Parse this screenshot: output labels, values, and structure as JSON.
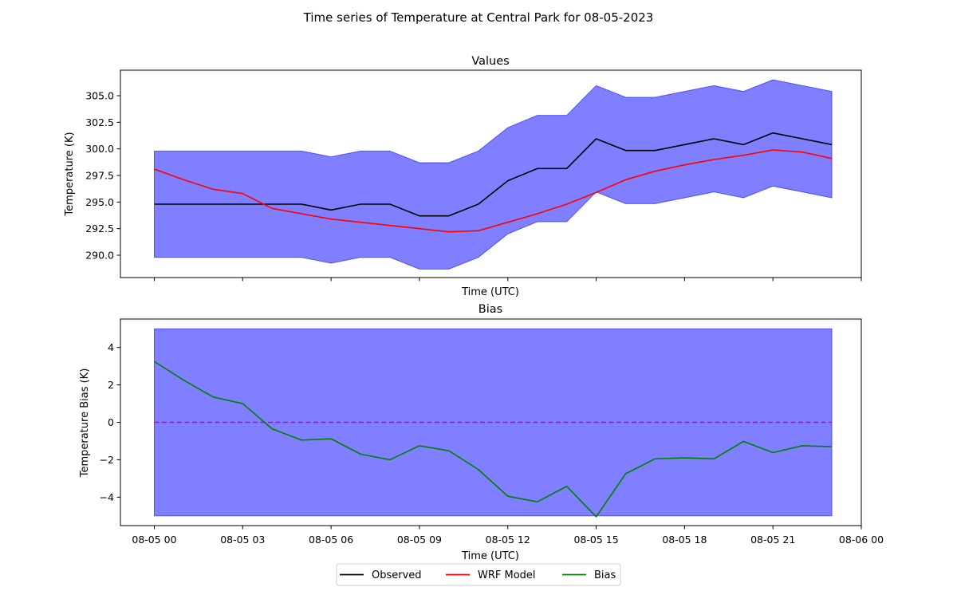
{
  "figure": {
    "title": "Time series of Temperature at Central Park for 08-05-2023"
  },
  "legend": {
    "placement": "bottom-center",
    "entries": [
      {
        "label": "Observed",
        "color": "#000000"
      },
      {
        "label": "WRF Model",
        "color": "#ff0000"
      },
      {
        "label": "Bias",
        "color": "#008000"
      }
    ]
  },
  "chart_data": [
    {
      "type": "line",
      "title": "Values",
      "xlabel": "Time (UTC)",
      "ylabel": "Temperature (K)",
      "x_hours": [
        0,
        1,
        2,
        3,
        4,
        5,
        6,
        7,
        8,
        9,
        10,
        11,
        12,
        13,
        14,
        15,
        16,
        17,
        18,
        19,
        20,
        21,
        22,
        23
      ],
      "xlim": [
        -1.15,
        24.0
      ],
      "ylim": [
        287.9,
        307.4
      ],
      "yticks": [
        290.0,
        292.5,
        295.0,
        297.5,
        300.0,
        302.5,
        305.0
      ],
      "ytick_labels": [
        "290.0",
        "292.5",
        "295.0",
        "297.5",
        "300.0",
        "302.5",
        "305.0"
      ],
      "xticks_hours": [
        0,
        3,
        6,
        9,
        12,
        15,
        18,
        21,
        24
      ],
      "show_xtick_labels": false,
      "band": {
        "color": "#0000ff",
        "alpha": 0.5,
        "upper": [
          299.8,
          299.8,
          299.8,
          299.8,
          299.8,
          299.8,
          299.25,
          299.8,
          299.8,
          298.7,
          298.7,
          299.8,
          302.0,
          303.15,
          303.15,
          305.95,
          304.85,
          304.85,
          305.4,
          305.95,
          305.4,
          306.5,
          305.95,
          305.4
        ],
        "lower": [
          289.8,
          289.8,
          289.8,
          289.8,
          289.8,
          289.8,
          289.25,
          289.8,
          289.8,
          288.7,
          288.7,
          289.8,
          292.0,
          293.15,
          293.15,
          295.95,
          294.85,
          294.85,
          295.4,
          295.95,
          295.4,
          296.5,
          295.95,
          295.4
        ]
      },
      "series": [
        {
          "name": "Observed",
          "color": "#000000",
          "values": [
            294.8,
            294.8,
            294.8,
            294.8,
            294.8,
            294.8,
            294.25,
            294.8,
            294.8,
            293.7,
            293.7,
            294.8,
            297.0,
            298.15,
            298.15,
            300.95,
            299.85,
            299.85,
            300.4,
            300.95,
            300.4,
            301.5,
            300.95,
            300.4
          ]
        },
        {
          "name": "WRF Model",
          "color": "#ff0000",
          "values": [
            298.1,
            297.1,
            296.2,
            295.8,
            294.4,
            293.9,
            293.4,
            293.1,
            292.8,
            292.5,
            292.2,
            292.3,
            293.1,
            293.9,
            294.8,
            295.9,
            297.1,
            297.9,
            298.5,
            299.0,
            299.4,
            299.9,
            299.7,
            299.1
          ]
        }
      ]
    },
    {
      "type": "line",
      "title": "Bias",
      "xlabel": "Time (UTC)",
      "ylabel": "Temperature Bias (K)",
      "x_hours": [
        0,
        1,
        2,
        3,
        4,
        5,
        6,
        7,
        8,
        9,
        10,
        11,
        12,
        13,
        14,
        15,
        16,
        17,
        18,
        19,
        20,
        21,
        22,
        23
      ],
      "xlim": [
        -1.15,
        24.0
      ],
      "ylim": [
        -5.52,
        5.52
      ],
      "yticks": [
        -4,
        -2,
        0,
        2,
        4
      ],
      "ytick_labels": [
        "−4",
        "−2",
        "0",
        "2",
        "4"
      ],
      "xticks_hours": [
        0,
        3,
        6,
        9,
        12,
        15,
        18,
        21,
        24
      ],
      "xtick_labels": [
        "08-05 00",
        "08-05 03",
        "08-05 06",
        "08-05 09",
        "08-05 12",
        "08-05 15",
        "08-05 18",
        "08-05 21",
        "08-06 00"
      ],
      "band": {
        "color": "#0000ff",
        "alpha": 0.5,
        "upper_const": 5,
        "lower_const": -5
      },
      "zero_line": {
        "value": 0,
        "color": "#bf00bf",
        "style": "dashed"
      },
      "series": [
        {
          "name": "Bias",
          "color": "#008000",
          "values": [
            3.25,
            2.25,
            1.35,
            1.0,
            -0.35,
            -0.95,
            -0.88,
            -1.7,
            -2.0,
            -1.25,
            -1.52,
            -2.52,
            -3.95,
            -4.25,
            -3.42,
            -5.05,
            -2.75,
            -1.95,
            -1.9,
            -1.95,
            -1.02,
            -1.62,
            -1.25,
            -1.3
          ]
        }
      ]
    }
  ]
}
